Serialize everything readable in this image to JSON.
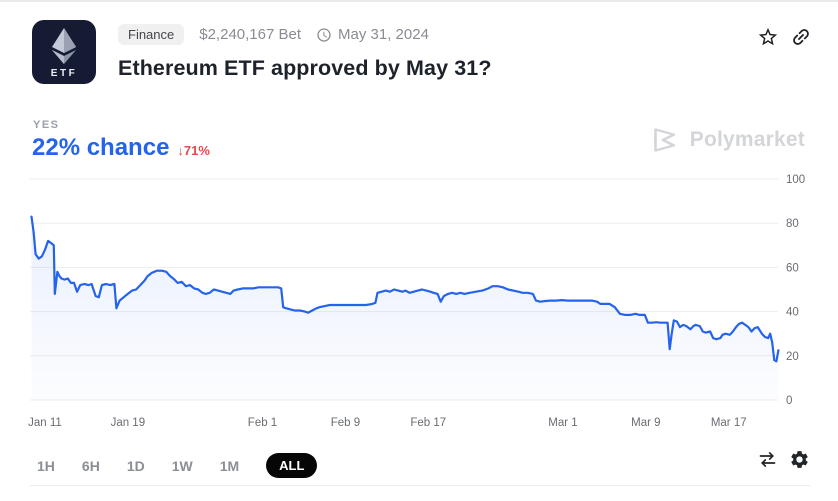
{
  "header": {
    "icon_label": "ETF",
    "category_tag": "Finance",
    "bet_amount": "$2,240,167 Bet",
    "end_date": "May 31, 2024",
    "title": "Ethereum ETF approved by May 31?"
  },
  "market": {
    "outcome_label": "YES",
    "chance_text": "22% chance",
    "change_arrow": "↓",
    "change_value": "71%"
  },
  "watermark": {
    "brand": "Polymarket"
  },
  "toolbar": {
    "ranges": [
      {
        "label": "1H",
        "active": false
      },
      {
        "label": "6H",
        "active": false
      },
      {
        "label": "1D",
        "active": false
      },
      {
        "label": "1W",
        "active": false
      },
      {
        "label": "1M",
        "active": false
      },
      {
        "label": "ALL",
        "active": true
      }
    ]
  },
  "colors": {
    "accent_blue": "#2563eb",
    "down_red": "#e5484d",
    "chart_line": "#2563eb"
  },
  "chart_data": {
    "type": "line",
    "title": "YES chance history",
    "xlabel": "",
    "ylabel": "",
    "ylim": [
      0,
      100
    ],
    "grid": "horizontal",
    "legend": false,
    "x_unit": "days since Jan 10, 2024",
    "y_ticks": [
      0,
      20,
      40,
      60,
      80,
      100
    ],
    "x_ticks": [
      {
        "day": 1,
        "label": "Jan 11"
      },
      {
        "day": 9,
        "label": "Jan 19"
      },
      {
        "day": 22,
        "label": "Feb 1"
      },
      {
        "day": 30,
        "label": "Feb 9"
      },
      {
        "day": 38,
        "label": "Feb 17"
      },
      {
        "day": 51,
        "label": "Mar 1"
      },
      {
        "day": 59,
        "label": "Mar 9"
      },
      {
        "day": 67,
        "label": "Mar 17"
      }
    ],
    "series": [
      {
        "name": "YES",
        "points": [
          [
            -0.3,
            83
          ],
          [
            -0.1,
            76
          ],
          [
            0.1,
            66
          ],
          [
            0.4,
            64
          ],
          [
            0.7,
            65
          ],
          [
            1.0,
            68
          ],
          [
            1.3,
            72
          ],
          [
            1.6,
            71
          ],
          [
            1.85,
            70
          ],
          [
            1.95,
            48
          ],
          [
            2.2,
            58
          ],
          [
            2.4,
            56
          ],
          [
            2.6,
            55
          ],
          [
            2.9,
            54.5
          ],
          [
            3.2,
            55
          ],
          [
            3.5,
            53
          ],
          [
            3.8,
            53
          ],
          [
            4.1,
            49
          ],
          [
            4.4,
            52
          ],
          [
            4.8,
            52.5
          ],
          [
            5.2,
            52
          ],
          [
            5.5,
            52.5
          ],
          [
            5.9,
            47
          ],
          [
            6.2,
            46.5
          ],
          [
            6.5,
            52
          ],
          [
            6.9,
            52.5
          ],
          [
            7.3,
            52
          ],
          [
            7.7,
            52.5
          ],
          [
            7.9,
            41.5
          ],
          [
            8.2,
            45
          ],
          [
            8.6,
            46.5
          ],
          [
            9.0,
            48
          ],
          [
            9.4,
            49.5
          ],
          [
            9.8,
            50
          ],
          [
            10.2,
            52
          ],
          [
            10.6,
            54
          ],
          [
            10.9,
            56
          ],
          [
            11.3,
            57.5
          ],
          [
            11.8,
            58.5
          ],
          [
            12.3,
            58.5
          ],
          [
            12.7,
            58
          ],
          [
            13.1,
            56
          ],
          [
            13.5,
            54.5
          ],
          [
            13.8,
            53
          ],
          [
            14.2,
            53.5
          ],
          [
            14.6,
            51.5
          ],
          [
            15.0,
            52
          ],
          [
            15.4,
            50.5
          ],
          [
            15.8,
            50
          ],
          [
            16.2,
            48.5
          ],
          [
            16.5,
            48
          ],
          [
            16.9,
            48.5
          ],
          [
            17.3,
            50
          ],
          [
            17.7,
            49.5
          ],
          [
            18.1,
            49
          ],
          [
            18.5,
            48.5
          ],
          [
            18.9,
            48
          ],
          [
            19.2,
            49.5
          ],
          [
            19.6,
            50
          ],
          [
            20.1,
            50.5
          ],
          [
            20.6,
            50.5
          ],
          [
            21.1,
            50.5
          ],
          [
            21.6,
            51
          ],
          [
            22.0,
            51
          ],
          [
            22.5,
            51
          ],
          [
            23.0,
            51
          ],
          [
            23.5,
            51
          ],
          [
            23.8,
            50.5
          ],
          [
            24.0,
            42
          ],
          [
            24.3,
            41.5
          ],
          [
            24.7,
            41
          ],
          [
            25.1,
            40.5
          ],
          [
            25.6,
            40.5
          ],
          [
            26.1,
            40
          ],
          [
            26.4,
            39.5
          ],
          [
            26.8,
            40.5
          ],
          [
            27.2,
            41.5
          ],
          [
            27.5,
            42
          ],
          [
            28.0,
            42.5
          ],
          [
            28.5,
            43
          ],
          [
            29.1,
            43
          ],
          [
            29.7,
            43
          ],
          [
            30.2,
            43
          ],
          [
            30.8,
            43
          ],
          [
            31.4,
            43
          ],
          [
            32.0,
            43
          ],
          [
            32.6,
            43.5
          ],
          [
            32.9,
            44
          ],
          [
            33.1,
            48.5
          ],
          [
            33.5,
            49
          ],
          [
            33.9,
            49.5
          ],
          [
            34.3,
            49
          ],
          [
            34.7,
            50
          ],
          [
            35.1,
            49.5
          ],
          [
            35.5,
            49
          ],
          [
            35.8,
            49.5
          ],
          [
            36.2,
            48.5
          ],
          [
            36.6,
            49
          ],
          [
            37.0,
            49.5
          ],
          [
            37.4,
            50
          ],
          [
            37.8,
            49.5
          ],
          [
            38.2,
            49
          ],
          [
            38.5,
            48.5
          ],
          [
            38.9,
            48
          ],
          [
            39.2,
            44.5
          ],
          [
            39.5,
            47
          ],
          [
            39.9,
            48
          ],
          [
            40.3,
            48.5
          ],
          [
            40.7,
            48
          ],
          [
            41.1,
            48.5
          ],
          [
            41.5,
            48
          ],
          [
            42.0,
            48.5
          ],
          [
            42.6,
            49
          ],
          [
            43.2,
            49.5
          ],
          [
            43.8,
            50.5
          ],
          [
            44.2,
            51.5
          ],
          [
            44.7,
            51.5
          ],
          [
            45.2,
            51
          ],
          [
            45.7,
            50
          ],
          [
            46.2,
            49.5
          ],
          [
            46.7,
            49
          ],
          [
            47.1,
            48.5
          ],
          [
            47.6,
            48.5
          ],
          [
            48.1,
            48
          ],
          [
            48.4,
            45
          ],
          [
            48.8,
            44.5
          ],
          [
            49.3,
            44.8
          ],
          [
            49.8,
            45
          ],
          [
            50.3,
            45
          ],
          [
            50.9,
            45.2
          ],
          [
            51.5,
            45
          ],
          [
            52.1,
            45
          ],
          [
            52.7,
            45
          ],
          [
            53.2,
            45
          ],
          [
            53.8,
            45
          ],
          [
            54.3,
            44.5
          ],
          [
            54.6,
            43.5
          ],
          [
            55.1,
            43.5
          ],
          [
            55.5,
            43.5
          ],
          [
            56.0,
            42
          ],
          [
            56.5,
            39
          ],
          [
            57.0,
            38.5
          ],
          [
            57.5,
            38.5
          ],
          [
            58.0,
            39
          ],
          [
            58.4,
            38.5
          ],
          [
            58.9,
            38.5
          ],
          [
            59.2,
            35
          ],
          [
            59.6,
            35
          ],
          [
            60.0,
            35.2
          ],
          [
            60.4,
            35
          ],
          [
            60.8,
            35
          ],
          [
            61.1,
            35
          ],
          [
            61.3,
            23
          ],
          [
            61.5,
            30
          ],
          [
            61.7,
            36
          ],
          [
            62.0,
            35.5
          ],
          [
            62.3,
            33
          ],
          [
            62.6,
            34
          ],
          [
            62.9,
            33.5
          ],
          [
            63.3,
            32
          ],
          [
            63.6,
            33.5
          ],
          [
            63.8,
            34
          ],
          [
            64.2,
            33.5
          ],
          [
            64.5,
            31
          ],
          [
            64.8,
            30.5
          ],
          [
            65.2,
            31
          ],
          [
            65.5,
            28
          ],
          [
            65.8,
            27.5
          ],
          [
            66.2,
            28
          ],
          [
            66.4,
            29.5
          ],
          [
            66.7,
            30
          ],
          [
            67.1,
            29.5
          ],
          [
            67.4,
            31
          ],
          [
            67.7,
            33
          ],
          [
            68.0,
            34.5
          ],
          [
            68.3,
            35
          ],
          [
            68.6,
            34
          ],
          [
            68.9,
            33
          ],
          [
            69.2,
            31
          ],
          [
            69.5,
            32.5
          ],
          [
            69.8,
            33
          ],
          [
            70.2,
            30
          ],
          [
            70.5,
            28.5
          ],
          [
            70.8,
            28
          ],
          [
            71.0,
            30
          ],
          [
            71.2,
            26
          ],
          [
            71.4,
            18
          ],
          [
            71.6,
            17.5
          ],
          [
            71.8,
            22.5
          ]
        ]
      }
    ]
  }
}
